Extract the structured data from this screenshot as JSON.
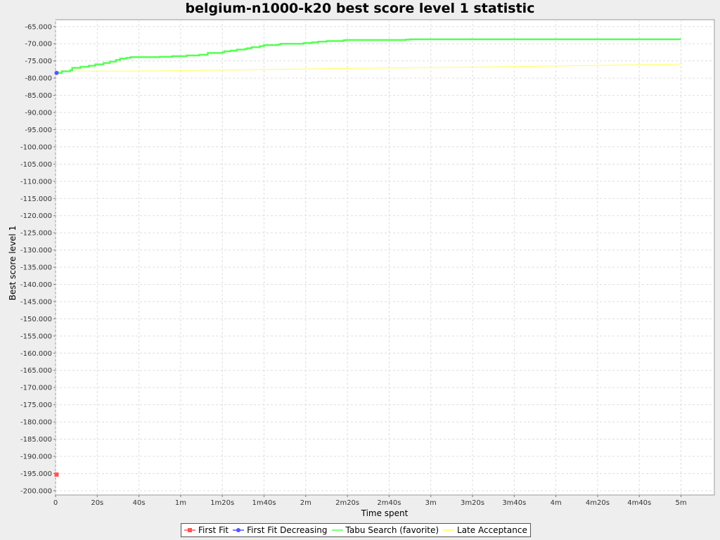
{
  "chart_data": {
    "type": "line",
    "title": "belgium-n1000-k20 best score level 1 statistic",
    "xlabel": "Time spent",
    "ylabel": "Best score level 1",
    "xlim": [
      0,
      316
    ],
    "ylim": [
      -201250,
      -63000
    ],
    "x_ticks": [
      {
        "value": 0,
        "label": "0"
      },
      {
        "value": 20,
        "label": "20s"
      },
      {
        "value": 40,
        "label": "40s"
      },
      {
        "value": 60,
        "label": "1m"
      },
      {
        "value": 80,
        "label": "1m20s"
      },
      {
        "value": 100,
        "label": "1m40s"
      },
      {
        "value": 120,
        "label": "2m"
      },
      {
        "value": 140,
        "label": "2m20s"
      },
      {
        "value": 160,
        "label": "2m40s"
      },
      {
        "value": 180,
        "label": "3m"
      },
      {
        "value": 200,
        "label": "3m20s"
      },
      {
        "value": 220,
        "label": "3m40s"
      },
      {
        "value": 240,
        "label": "4m"
      },
      {
        "value": 260,
        "label": "4m20s"
      },
      {
        "value": 280,
        "label": "4m40s"
      },
      {
        "value": 300,
        "label": "5m"
      }
    ],
    "y_ticks": [
      {
        "value": -65000,
        "label": "-65.000"
      },
      {
        "value": -70000,
        "label": "-70.000"
      },
      {
        "value": -75000,
        "label": "-75.000"
      },
      {
        "value": -80000,
        "label": "-80.000"
      },
      {
        "value": -85000,
        "label": "-85.000"
      },
      {
        "value": -90000,
        "label": "-90.000"
      },
      {
        "value": -95000,
        "label": "-95.000"
      },
      {
        "value": -100000,
        "label": "-100.000"
      },
      {
        "value": -105000,
        "label": "-105.000"
      },
      {
        "value": -110000,
        "label": "-110.000"
      },
      {
        "value": -115000,
        "label": "-115.000"
      },
      {
        "value": -120000,
        "label": "-120.000"
      },
      {
        "value": -125000,
        "label": "-125.000"
      },
      {
        "value": -130000,
        "label": "-130.000"
      },
      {
        "value": -135000,
        "label": "-135.000"
      },
      {
        "value": -140000,
        "label": "-140.000"
      },
      {
        "value": -145000,
        "label": "-145.000"
      },
      {
        "value": -150000,
        "label": "-150.000"
      },
      {
        "value": -155000,
        "label": "-155.000"
      },
      {
        "value": -160000,
        "label": "-160.000"
      },
      {
        "value": -165000,
        "label": "-165.000"
      },
      {
        "value": -170000,
        "label": "-170.000"
      },
      {
        "value": -175000,
        "label": "-175.000"
      },
      {
        "value": -180000,
        "label": "-180.000"
      },
      {
        "value": -185000,
        "label": "-185.000"
      },
      {
        "value": -190000,
        "label": "-190.000"
      },
      {
        "value": -195000,
        "label": "-195.000"
      },
      {
        "value": -200000,
        "label": "-200.000"
      }
    ],
    "grid": true,
    "legend_position": "bottom",
    "series": [
      {
        "name": "First Fit",
        "color": "#ff5555",
        "marker": "square",
        "points": [
          [
            0.5,
            -195300
          ]
        ]
      },
      {
        "name": "First Fit Decreasing",
        "color": "#5555ff",
        "marker": "circle",
        "points": [
          [
            0.5,
            -78500
          ]
        ]
      },
      {
        "name": "Tabu Search (favorite)",
        "color": "#55ff55",
        "marker": "none",
        "step": true,
        "width": 2.5,
        "points": [
          [
            0.5,
            -78500
          ],
          [
            3,
            -78000
          ],
          [
            7,
            -77700
          ],
          [
            8,
            -77000
          ],
          [
            12,
            -76700
          ],
          [
            16,
            -76400
          ],
          [
            19,
            -76000
          ],
          [
            23,
            -75600
          ],
          [
            26,
            -75200
          ],
          [
            29,
            -74700
          ],
          [
            31,
            -74300
          ],
          [
            34,
            -74100
          ],
          [
            36,
            -73900
          ],
          [
            50,
            -73800
          ],
          [
            56,
            -73600
          ],
          [
            63,
            -73400
          ],
          [
            69,
            -73200
          ],
          [
            73,
            -72700
          ],
          [
            80,
            -72500
          ],
          [
            81,
            -72200
          ],
          [
            84,
            -72000
          ],
          [
            87,
            -71700
          ],
          [
            91,
            -71500
          ],
          [
            92,
            -71300
          ],
          [
            94,
            -71000
          ],
          [
            98,
            -70700
          ],
          [
            100,
            -70400
          ],
          [
            107,
            -70200
          ],
          [
            108,
            -70000
          ],
          [
            119,
            -69800
          ],
          [
            123,
            -69600
          ],
          [
            126,
            -69400
          ],
          [
            130,
            -69200
          ],
          [
            138,
            -69000
          ],
          [
            139,
            -68900
          ],
          [
            168,
            -68800
          ],
          [
            170,
            -68700
          ],
          [
            300,
            -68700
          ]
        ]
      },
      {
        "name": "Late Acceptance",
        "color": "#ffff55",
        "marker": "none",
        "step": false,
        "width": 1,
        "points": [
          [
            0.5,
            -78000
          ],
          [
            50,
            -77900
          ],
          [
            100,
            -77500
          ],
          [
            150,
            -77100
          ],
          [
            200,
            -76800
          ],
          [
            250,
            -76400
          ],
          [
            300,
            -75900
          ]
        ]
      }
    ]
  }
}
